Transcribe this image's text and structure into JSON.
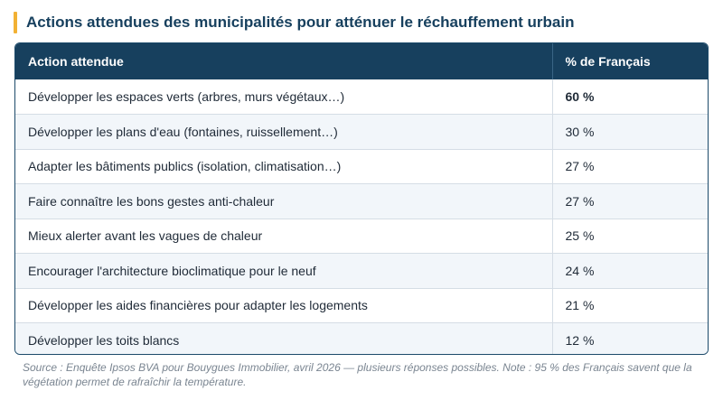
{
  "title": "Actions attendues des municipalités pour atténuer le réchauffement urbain",
  "colors": {
    "accent": "#f2b134",
    "header_bg": "#17405e",
    "title": "#17405e"
  },
  "table": {
    "headers": [
      "Action attendue",
      "% de Français"
    ],
    "rows": [
      {
        "action": "Développer les espaces verts (arbres, murs végétaux…)",
        "pct": "60 %",
        "bold": true
      },
      {
        "action": "Développer les plans d'eau (fontaines, ruissellement…)",
        "pct": "30 %"
      },
      {
        "action": "Adapter les bâtiments publics (isolation, climatisation…)",
        "pct": "27 %"
      },
      {
        "action": "Faire connaître les bons gestes anti-chaleur",
        "pct": "27 %"
      },
      {
        "action": "Mieux alerter avant les vagues de chaleur",
        "pct": "25 %"
      },
      {
        "action": "Encourager l'architecture bioclimatique pour le neuf",
        "pct": "24 %"
      },
      {
        "action": "Développer les aides financières pour adapter les logements",
        "pct": "21 %"
      },
      {
        "action": "Développer les toits blancs",
        "pct": "12 %"
      }
    ]
  },
  "source": "Source : Enquête Ipsos BVA pour Bouygues Immobilier, avril 2026 — plusieurs réponses possibles. Note : 95 % des Français savent que la végétation permet de rafraîchir la température."
}
